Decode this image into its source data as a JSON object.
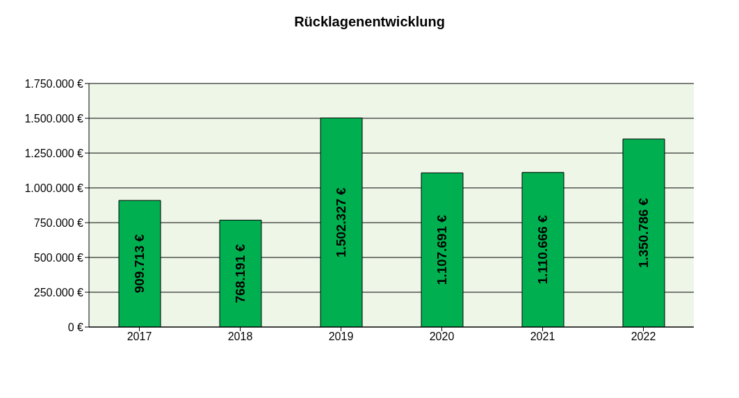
{
  "chart_data": {
    "type": "bar",
    "title": "Rücklagenentwicklung",
    "categories": [
      "2017",
      "2018",
      "2019",
      "2020",
      "2021",
      "2022"
    ],
    "values": [
      909713,
      768191,
      1502327,
      1107691,
      1110666,
      1350786
    ],
    "value_labels": [
      "909.713 €",
      "768.191 €",
      "1.502.327 €",
      "1.107.691 €",
      "1.110.666 €",
      "1.350.786 €"
    ],
    "color": "#00b050",
    "ylim": [
      0,
      1750000
    ],
    "yticks": [
      {
        "value": 0,
        "label": "0 €"
      },
      {
        "value": 250000,
        "label": "250.000 €"
      },
      {
        "value": 500000,
        "label": "500.000 €"
      },
      {
        "value": 750000,
        "label": "750.000 €"
      },
      {
        "value": 1000000,
        "label": "1.000.000 €"
      },
      {
        "value": 1250000,
        "label": "1.250.000 €"
      },
      {
        "value": 1500000,
        "label": "1.500.000 €"
      },
      {
        "value": 1750000,
        "label": "1.750.000 €"
      }
    ],
    "grid": "y"
  }
}
